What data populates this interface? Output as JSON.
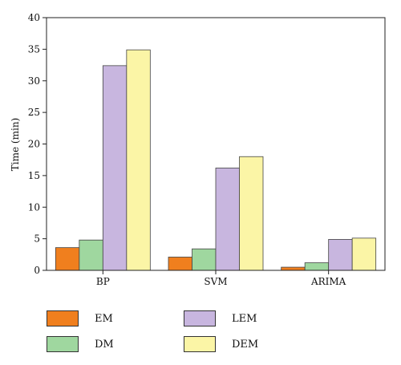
{
  "chart_data": {
    "type": "bar",
    "categories": [
      "BP",
      "SVM",
      "ARIMA"
    ],
    "series": [
      {
        "name": "EM",
        "values": [
          3.6,
          2.1,
          0.5
        ],
        "color": "#f07f1e"
      },
      {
        "name": "DM",
        "values": [
          4.8,
          3.4,
          1.2
        ],
        "color": "#9fd79f"
      },
      {
        "name": "LEM",
        "values": [
          32.4,
          16.2,
          4.9
        ],
        "color": "#c8b6df"
      },
      {
        "name": "DEM",
        "values": [
          34.9,
          18.0,
          5.1
        ],
        "color": "#fbf5a6"
      }
    ],
    "title": "",
    "xlabel": "",
    "ylabel": "Time (min)",
    "ylim": [
      0,
      40
    ],
    "yticks": [
      0,
      5,
      10,
      15,
      20,
      25,
      30,
      35,
      40
    ],
    "grid": false,
    "legend_position": "bottom"
  }
}
